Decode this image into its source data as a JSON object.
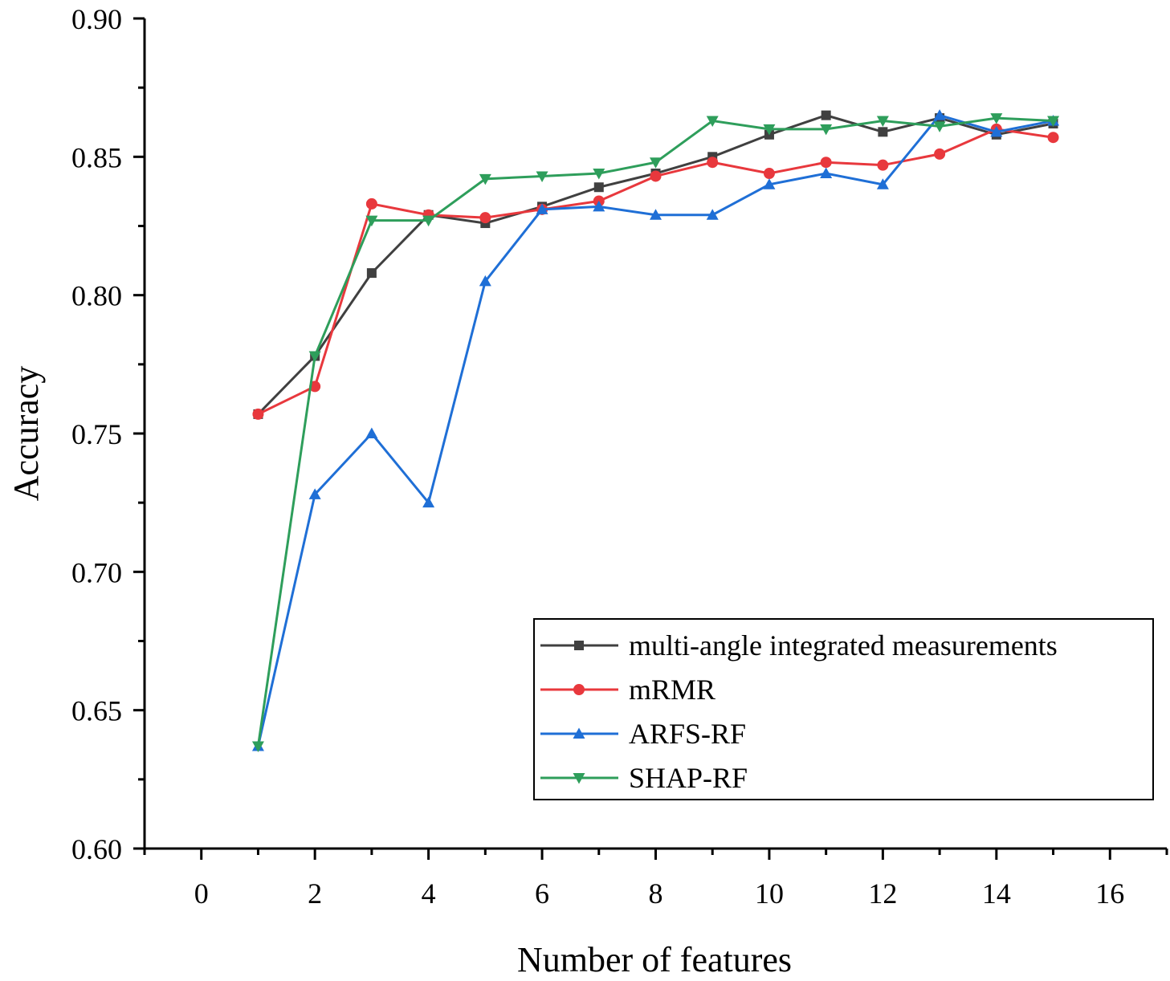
{
  "chart_data": {
    "type": "line",
    "title": "",
    "xlabel": "Number of features",
    "ylabel": "Accuracy",
    "xlim": [
      -1,
      17
    ],
    "ylim": [
      0.6,
      0.9
    ],
    "x_ticks": [
      0,
      2,
      4,
      6,
      8,
      10,
      12,
      14,
      16
    ],
    "x_tick_labels": [
      "0",
      "2",
      "4",
      "6",
      "8",
      "10",
      "12",
      "14",
      "16"
    ],
    "y_ticks": [
      0.6,
      0.65,
      0.7,
      0.75,
      0.8,
      0.85,
      0.9
    ],
    "y_tick_labels": [
      "0.60",
      "0.65",
      "0.70",
      "0.75",
      "0.80",
      "0.85",
      "0.90"
    ],
    "grid": false,
    "legend_position": "bottom-right",
    "x": [
      1,
      2,
      3,
      4,
      5,
      6,
      7,
      8,
      9,
      10,
      11,
      12,
      13,
      14,
      15
    ],
    "series": [
      {
        "name": "multi-angle integrated measurements",
        "color": "#404040",
        "marker": "square",
        "values": [
          0.757,
          0.778,
          0.808,
          0.829,
          0.826,
          0.832,
          0.839,
          0.844,
          0.85,
          0.858,
          0.865,
          0.859,
          0.864,
          0.858,
          0.862
        ]
      },
      {
        "name": "mRMR",
        "color": "#e8383d",
        "marker": "circle",
        "values": [
          0.757,
          0.767,
          0.833,
          0.829,
          0.828,
          0.831,
          0.834,
          0.843,
          0.848,
          0.844,
          0.848,
          0.847,
          0.851,
          0.86,
          0.857
        ]
      },
      {
        "name": "ARFS-RF",
        "color": "#1f6fd6",
        "marker": "triangle-up",
        "values": [
          0.637,
          0.728,
          0.75,
          0.725,
          0.805,
          0.831,
          0.832,
          0.829,
          0.829,
          0.84,
          0.844,
          0.84,
          0.865,
          0.859,
          0.863
        ]
      },
      {
        "name": "SHAP-RF",
        "color": "#2e9e5b",
        "marker": "triangle-down",
        "values": [
          0.637,
          0.778,
          0.827,
          0.827,
          0.842,
          0.843,
          0.844,
          0.848,
          0.863,
          0.86,
          0.86,
          0.863,
          0.861,
          0.864,
          0.863
        ]
      }
    ]
  }
}
